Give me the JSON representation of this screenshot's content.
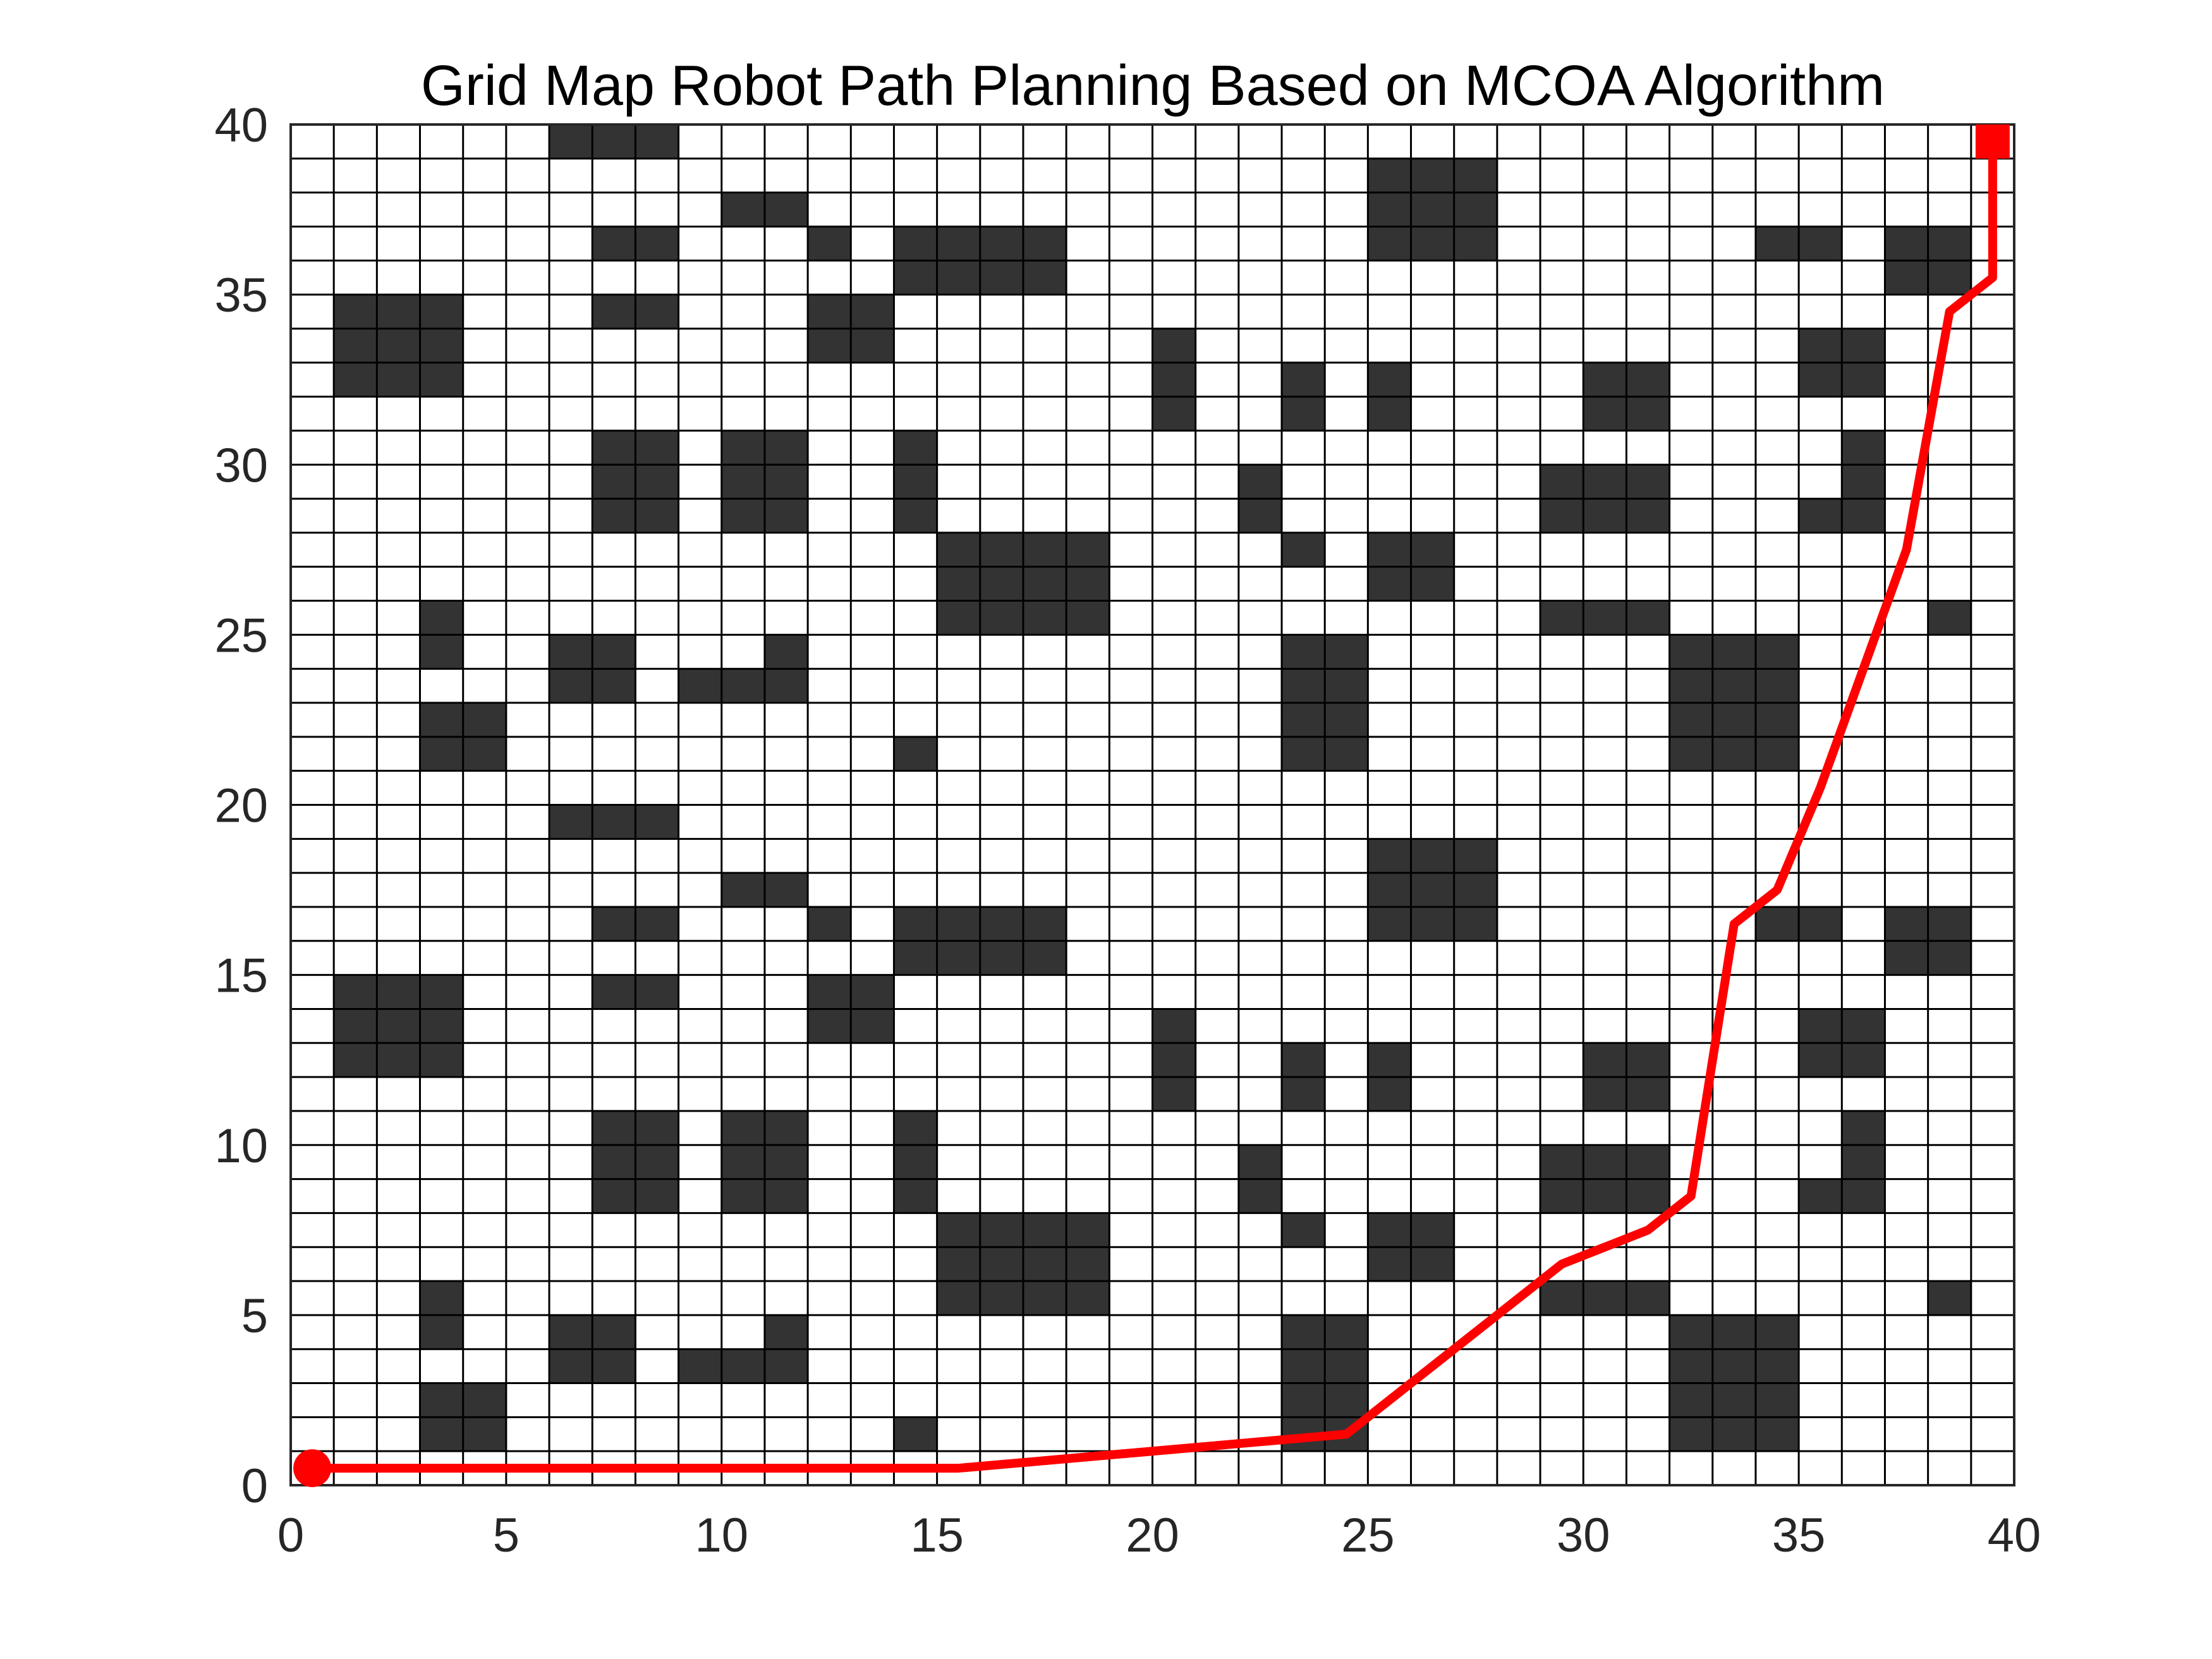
{
  "chart_data": {
    "type": "heatmap",
    "title": "Grid Map Robot Path Planning Based on MCOA Algorithm",
    "xlabel": "",
    "ylabel": "",
    "xlim": [
      0,
      40
    ],
    "ylim": [
      0,
      40
    ],
    "xticks": [
      0,
      5,
      10,
      15,
      20,
      25,
      30,
      35,
      40
    ],
    "yticks": [
      0,
      5,
      10,
      15,
      20,
      25,
      30,
      35,
      40
    ],
    "grid": true,
    "grid_size": 40,
    "obstacle_color": "#333333",
    "free_color": "#ffffff",
    "obstacles_bottom_half": [
      [
        3,
        1
      ],
      [
        3,
        2
      ],
      [
        4,
        1
      ],
      [
        4,
        2
      ],
      [
        6,
        3
      ],
      [
        6,
        4
      ],
      [
        7,
        3
      ],
      [
        7,
        4
      ],
      [
        9,
        3
      ],
      [
        10,
        3
      ],
      [
        11,
        3
      ],
      [
        11,
        4
      ],
      [
        3,
        4
      ],
      [
        3,
        5
      ],
      [
        14,
        1
      ],
      [
        15,
        5
      ],
      [
        15,
        6
      ],
      [
        15,
        7
      ],
      [
        16,
        5
      ],
      [
        16,
        6
      ],
      [
        16,
        7
      ],
      [
        17,
        5
      ],
      [
        17,
        6
      ],
      [
        17,
        7
      ],
      [
        18,
        5
      ],
      [
        18,
        6
      ],
      [
        18,
        7
      ],
      [
        23,
        1
      ],
      [
        23,
        2
      ],
      [
        23,
        3
      ],
      [
        23,
        4
      ],
      [
        24,
        1
      ],
      [
        24,
        2
      ],
      [
        24,
        3
      ],
      [
        24,
        4
      ],
      [
        23,
        7
      ],
      [
        25,
        6
      ],
      [
        25,
        7
      ],
      [
        26,
        6
      ],
      [
        26,
        7
      ],
      [
        7,
        8
      ],
      [
        7,
        9
      ],
      [
        7,
        10
      ],
      [
        8,
        8
      ],
      [
        8,
        9
      ],
      [
        8,
        10
      ],
      [
        10,
        8
      ],
      [
        10,
        9
      ],
      [
        10,
        10
      ],
      [
        11,
        8
      ],
      [
        11,
        9
      ],
      [
        11,
        10
      ],
      [
        14,
        8
      ],
      [
        14,
        9
      ],
      [
        14,
        10
      ],
      [
        20,
        11
      ],
      [
        20,
        12
      ],
      [
        20,
        13
      ],
      [
        23,
        11
      ],
      [
        23,
        12
      ],
      [
        25,
        11
      ],
      [
        25,
        12
      ],
      [
        22,
        8
      ],
      [
        22,
        9
      ],
      [
        29,
        5
      ],
      [
        30,
        5
      ],
      [
        31,
        5
      ],
      [
        29,
        8
      ],
      [
        29,
        9
      ],
      [
        30,
        8
      ],
      [
        30,
        9
      ],
      [
        31,
        8
      ],
      [
        31,
        9
      ],
      [
        30,
        11
      ],
      [
        30,
        12
      ],
      [
        31,
        11
      ],
      [
        31,
        12
      ],
      [
        32,
        1
      ],
      [
        32,
        2
      ],
      [
        32,
        3
      ],
      [
        32,
        4
      ],
      [
        33,
        1
      ],
      [
        33,
        2
      ],
      [
        33,
        3
      ],
      [
        33,
        4
      ],
      [
        34,
        1
      ],
      [
        34,
        2
      ],
      [
        34,
        3
      ],
      [
        34,
        4
      ],
      [
        38,
        5
      ],
      [
        35,
        8
      ],
      [
        36,
        8
      ],
      [
        36,
        9
      ],
      [
        36,
        10
      ],
      [
        35,
        12
      ],
      [
        35,
        13
      ],
      [
        36,
        12
      ],
      [
        36,
        13
      ],
      [
        1,
        12
      ],
      [
        1,
        13
      ],
      [
        1,
        14
      ],
      [
        2,
        12
      ],
      [
        2,
        13
      ],
      [
        2,
        14
      ],
      [
        3,
        12
      ],
      [
        3,
        13
      ],
      [
        3,
        14
      ],
      [
        7,
        14
      ],
      [
        8,
        14
      ],
      [
        7,
        16
      ],
      [
        8,
        16
      ],
      [
        12,
        13
      ],
      [
        12,
        14
      ],
      [
        13,
        13
      ],
      [
        13,
        14
      ],
      [
        12,
        16
      ],
      [
        10,
        17
      ],
      [
        11,
        17
      ],
      [
        14,
        15
      ],
      [
        14,
        16
      ],
      [
        15,
        15
      ],
      [
        15,
        16
      ],
      [
        16,
        15
      ],
      [
        16,
        16
      ],
      [
        17,
        15
      ],
      [
        17,
        16
      ],
      [
        6,
        19
      ],
      [
        7,
        19
      ],
      [
        8,
        19
      ],
      [
        25,
        16
      ],
      [
        25,
        17
      ],
      [
        25,
        18
      ],
      [
        26,
        16
      ],
      [
        26,
        17
      ],
      [
        26,
        18
      ],
      [
        27,
        16
      ],
      [
        27,
        17
      ],
      [
        27,
        18
      ],
      [
        34,
        16
      ],
      [
        35,
        16
      ],
      [
        37,
        15
      ],
      [
        37,
        16
      ],
      [
        38,
        15
      ],
      [
        38,
        16
      ]
    ],
    "obstacles_offset_rows": 20,
    "path": {
      "name": "",
      "color": "#ff0000",
      "x": [
        0.5,
        15.5,
        24.5,
        29.5,
        31.5,
        32.5,
        33.5,
        34.5,
        35.5,
        37.5,
        38.5,
        39.5,
        39.5
      ],
      "y": [
        0.5,
        0.5,
        1.5,
        6.5,
        7.5,
        8.5,
        16.5,
        17.5,
        20.5,
        27.5,
        34.5,
        35.5,
        39.5
      ]
    },
    "start": {
      "x": 0.5,
      "y": 0.5,
      "marker": "circle",
      "color": "#ff0000"
    },
    "goal": {
      "x": 39.5,
      "y": 39.5,
      "marker": "square",
      "color": "#ff0000"
    }
  }
}
